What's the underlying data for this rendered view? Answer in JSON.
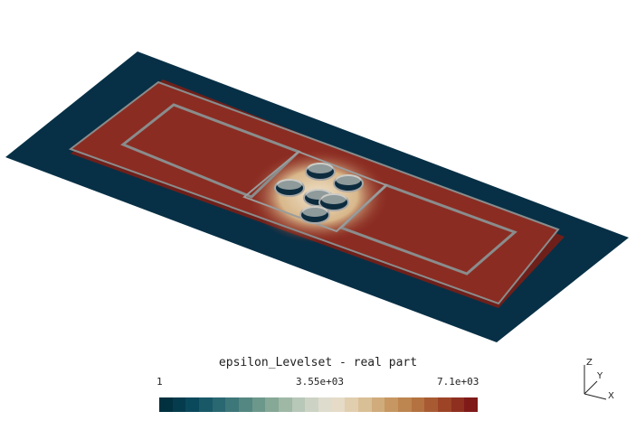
{
  "legend": {
    "title": "epsilon_Levelset - real part",
    "min_label": "1",
    "mid_label": "3.55e+03",
    "max_label": "7.1e+03",
    "range": [
      1,
      7100
    ],
    "colormap": [
      "#01303f",
      "#0a4a5c",
      "#2c6a73",
      "#5a8b83",
      "#8fae9a",
      "#c2cec0",
      "#e8e1d2",
      "#dcc6a0",
      "#c99c67",
      "#b57642",
      "#9e4628",
      "#7f1a18"
    ]
  },
  "scene": {
    "substrate_color": "#073046",
    "electrode_color": "#8b2c22",
    "outline_color": "#8a8c8c",
    "hole_count": 6
  },
  "axes": {
    "x_label": "X",
    "y_label": "Y",
    "z_label": "Z"
  }
}
